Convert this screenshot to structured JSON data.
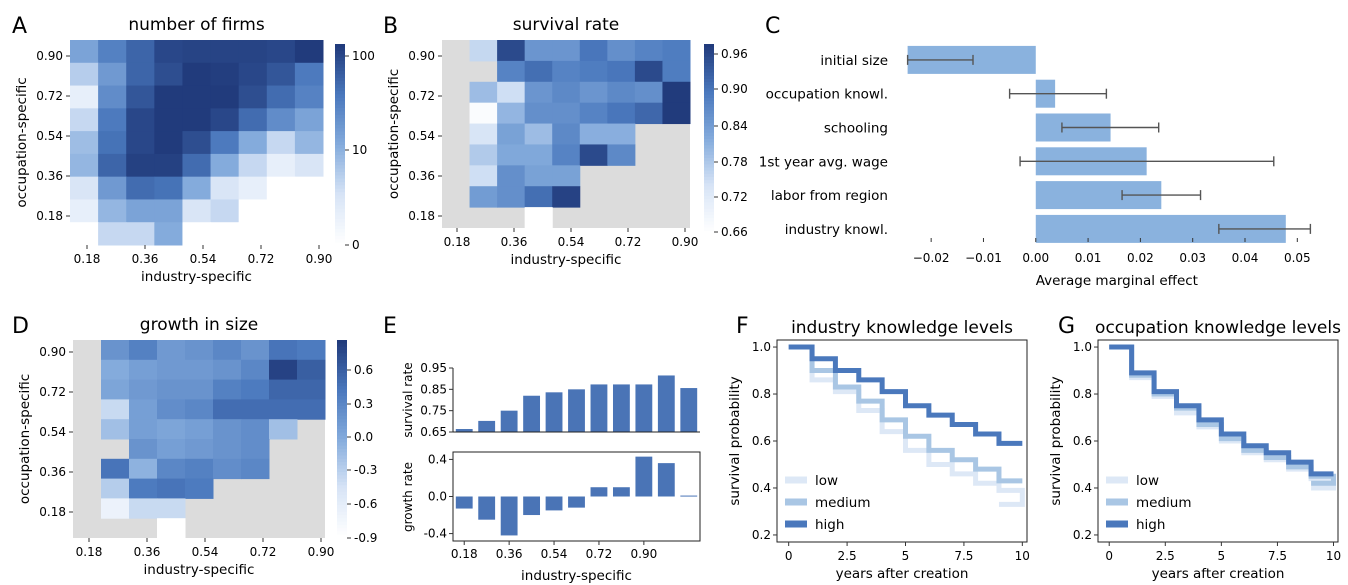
{
  "labels": {
    "A": "A",
    "B": "B",
    "C": "C",
    "D": "D",
    "E": "E",
    "F": "F",
    "G": "G"
  },
  "chart_data": [
    {
      "id": "A",
      "type": "heatmap",
      "title": "number of firms",
      "xlabel": "industry-specific",
      "ylabel": "occupation-specific",
      "x_ticks": [
        "0.18",
        "0.36",
        "0.54",
        "0.72",
        "0.90"
      ],
      "y_ticks": [
        "0.90",
        "0.72",
        "0.54",
        "0.36",
        "0.18"
      ],
      "colorbar": {
        "ticks": [
          "100",
          "10",
          "0"
        ],
        "scale": "log"
      },
      "rows_top_to_bottom": [
        [
          12,
          26,
          45,
          80,
          85,
          85,
          85,
          80,
          100
        ],
        [
          5,
          15,
          45,
          70,
          100,
          95,
          80,
          60,
          30
        ],
        [
          2,
          20,
          60,
          100,
          100,
          100,
          70,
          40,
          25
        ],
        [
          4,
          30,
          80,
          100,
          100,
          80,
          40,
          20,
          12
        ],
        [
          7,
          35,
          80,
          100,
          70,
          30,
          10,
          4,
          8
        ],
        [
          8,
          45,
          90,
          90,
          40,
          10,
          4,
          2,
          3
        ],
        [
          3,
          15,
          40,
          35,
          10,
          3,
          2,
          1,
          1
        ],
        [
          2,
          8,
          12,
          12,
          3,
          4,
          1,
          1,
          1
        ],
        [
          1,
          4,
          4,
          10,
          1,
          1,
          1,
          1,
          1
        ]
      ]
    },
    {
      "id": "B",
      "type": "heatmap",
      "title": "survival rate",
      "xlabel": "industry-specific",
      "ylabel": "occupation-specific",
      "x_ticks": [
        "0.18",
        "0.36",
        "0.54",
        "0.72",
        "0.90"
      ],
      "y_ticks": [
        "0.90",
        "0.72",
        "0.54",
        "0.36",
        "0.18"
      ],
      "colorbar": {
        "ticks": [
          "0.96",
          "0.90",
          "0.84",
          "0.78",
          "0.72",
          "0.66"
        ],
        "range": [
          0.64,
          0.97
        ]
      },
      "rows_top_to_bottom": [
        [
          null,
          0.74,
          0.95,
          0.84,
          0.84,
          0.89,
          0.85,
          0.87,
          0.88
        ],
        [
          null,
          null,
          0.87,
          0.9,
          0.87,
          0.88,
          0.89,
          0.95,
          0.88
        ],
        [
          null,
          0.78,
          0.73,
          0.84,
          0.86,
          0.84,
          0.86,
          0.85,
          0.97
        ],
        [
          null,
          0.65,
          0.79,
          0.85,
          0.85,
          0.87,
          0.89,
          0.91,
          0.97
        ],
        [
          null,
          0.72,
          0.82,
          0.78,
          0.86,
          0.8,
          0.8,
          null,
          null
        ],
        [
          null,
          0.76,
          0.81,
          0.81,
          0.87,
          0.95,
          0.86,
          null,
          null
        ],
        [
          null,
          0.73,
          0.85,
          0.82,
          0.82,
          null,
          null,
          null,
          null
        ],
        [
          null,
          0.83,
          0.85,
          0.9,
          0.96,
          null,
          null,
          null,
          null
        ],
        [
          null,
          null,
          null,
          0.64,
          null,
          null,
          null,
          null,
          null
        ]
      ]
    },
    {
      "id": "C",
      "type": "bar",
      "orientation": "horizontal",
      "xlabel": "Average marginal effect",
      "x_ticks": [
        "−0.02",
        "−0.01",
        "0.00",
        "0.01",
        "0.02",
        "0.03",
        "0.04",
        "0.05"
      ],
      "xlim": [
        -0.025,
        0.053
      ],
      "categories": [
        "initial size",
        "occupation knowl.",
        "schooling",
        "1st year avg. wage",
        "labor from region",
        "industry knowl."
      ],
      "values": [
        -0.0245,
        0.0037,
        0.0143,
        0.0212,
        0.024,
        0.0478
      ],
      "ci": [
        [
          -0.0245,
          -0.012
        ],
        [
          -0.005,
          0.0135
        ],
        [
          0.005,
          0.0235
        ],
        [
          -0.003,
          0.0455
        ],
        [
          0.0165,
          0.0315
        ],
        [
          0.035,
          0.0525
        ]
      ]
    },
    {
      "id": "D",
      "type": "heatmap",
      "title": "growth in size",
      "xlabel": "industry-specific",
      "ylabel": "occupation-specific",
      "x_ticks": [
        "0.18",
        "0.36",
        "0.54",
        "0.72",
        "0.90"
      ],
      "y_ticks": [
        "0.90",
        "0.72",
        "0.54",
        "0.36",
        "0.18"
      ],
      "colorbar": {
        "ticks": [
          "0.6",
          "0.3",
          "0.0",
          "-0.3",
          "-0.6",
          "-0.9"
        ],
        "range": [
          -0.9,
          0.8
        ]
      },
      "rows_top_to_bottom": [
        [
          null,
          0.15,
          0.3,
          0.1,
          0.15,
          0.25,
          0.15,
          0.4,
          0.35
        ],
        [
          null,
          -0.05,
          0.05,
          0.1,
          0.1,
          0.15,
          0.25,
          0.75,
          0.55
        ],
        [
          null,
          0.0,
          0.1,
          0.15,
          0.15,
          0.3,
          0.35,
          0.5,
          0.5
        ],
        [
          null,
          -0.4,
          0.05,
          0.2,
          0.25,
          0.45,
          0.45,
          0.45,
          0.45
        ],
        [
          null,
          -0.2,
          0.05,
          0.0,
          0.05,
          0.15,
          0.2,
          -0.2,
          null
        ],
        [
          null,
          null,
          0.15,
          0.05,
          0.1,
          0.15,
          0.2,
          null,
          null
        ],
        [
          null,
          0.4,
          -0.1,
          0.25,
          0.3,
          0.2,
          0.25,
          null,
          null
        ],
        [
          null,
          -0.3,
          0.35,
          0.4,
          0.35,
          null,
          null,
          null,
          null
        ],
        [
          null,
          -0.7,
          -0.4,
          -0.4,
          null,
          null,
          null,
          null,
          null
        ],
        [
          null,
          null,
          null,
          -0.9,
          null,
          null,
          null,
          null,
          null
        ]
      ]
    },
    {
      "id": "E_top",
      "type": "bar",
      "ylabel": "survival rate",
      "y_ticks": [
        "0.95",
        "0.85",
        "0.75",
        "0.65"
      ],
      "ylim": [
        0.65,
        0.95
      ],
      "values": [
        0.664,
        0.702,
        0.75,
        0.82,
        0.836,
        0.85,
        0.873,
        0.873,
        0.873,
        0.915,
        0.856
      ]
    },
    {
      "id": "E_bottom",
      "type": "bar",
      "ylabel": "growth rate",
      "xlabel": "industry-specific",
      "x_ticks": [
        "0.18",
        "0.36",
        "0.54",
        "0.72",
        "0.90"
      ],
      "y_ticks": [
        "0.4",
        "0.0",
        "-0.4"
      ],
      "ylim": [
        -0.48,
        0.48
      ],
      "values": [
        -0.13,
        -0.25,
        -0.42,
        -0.2,
        -0.15,
        -0.12,
        0.1,
        0.1,
        0.43,
        0.36,
        0.01
      ]
    },
    {
      "id": "F",
      "type": "line",
      "step": true,
      "title": "industry knowledge levels",
      "xlabel": "years after creation",
      "ylabel": "survival probability",
      "xlim": [
        -0.5,
        10.2
      ],
      "ylim": [
        0.17,
        1.03
      ],
      "x_ticks": [
        "0",
        "2.5",
        "5",
        "7.5",
        "10"
      ],
      "y_ticks": [
        "1.0",
        "0.8",
        "0.6",
        "0.4",
        "0.2"
      ],
      "series": [
        {
          "name": "low",
          "color": "#dde8f6",
          "values": [
            1.0,
            0.86,
            0.81,
            0.73,
            0.64,
            0.56,
            0.5,
            0.46,
            0.42,
            0.39,
            0.33
          ]
        },
        {
          "name": "medium",
          "color": "#a9c6e4",
          "values": [
            1.0,
            0.9,
            0.83,
            0.77,
            0.69,
            0.62,
            0.56,
            0.52,
            0.48,
            0.43,
            0.43
          ]
        },
        {
          "name": "high",
          "color": "#4a78bc",
          "values": [
            1.0,
            0.95,
            0.9,
            0.86,
            0.81,
            0.75,
            0.71,
            0.67,
            0.63,
            0.59,
            0.59
          ]
        }
      ]
    },
    {
      "id": "G",
      "type": "line",
      "step": true,
      "title": "occupation knowledge levels",
      "xlabel": "years after creation",
      "ylabel": "survival probability",
      "xlim": [
        -0.5,
        10.2
      ],
      "ylim": [
        0.17,
        1.03
      ],
      "x_ticks": [
        "0",
        "2.5",
        "5",
        "7.5",
        "10"
      ],
      "y_ticks": [
        "1.0",
        "0.8",
        "0.6",
        "0.4",
        "0.2"
      ],
      "series": [
        {
          "name": "low",
          "color": "#dde8f6",
          "values": [
            1.0,
            0.87,
            0.79,
            0.72,
            0.66,
            0.6,
            0.55,
            0.52,
            0.48,
            0.44,
            0.4
          ]
        },
        {
          "name": "medium",
          "color": "#a9c6e4",
          "values": [
            1.0,
            0.88,
            0.8,
            0.74,
            0.67,
            0.61,
            0.56,
            0.53,
            0.49,
            0.45,
            0.42
          ]
        },
        {
          "name": "high",
          "color": "#4a78bc",
          "values": [
            1.0,
            0.89,
            0.81,
            0.75,
            0.69,
            0.63,
            0.58,
            0.55,
            0.51,
            0.46,
            0.46
          ]
        }
      ]
    }
  ]
}
